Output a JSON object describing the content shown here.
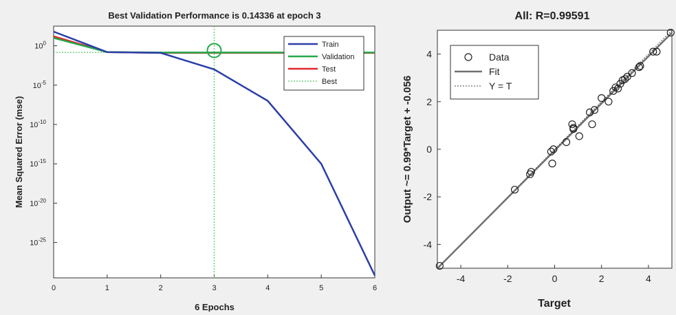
{
  "chart_data": [
    {
      "type": "line",
      "title": "Best Validation Performance is 0.14336 at epoch 3",
      "xlabel": "6 Epochs",
      "ylabel": "Mean Squared Error  (mse)",
      "yscale": "log",
      "xlim": [
        0,
        6
      ],
      "ylim_exponent": [
        -29.5,
        2.5
      ],
      "xticks": [
        0,
        1,
        2,
        3,
        4,
        5,
        6
      ],
      "yticks": [
        {
          "exp": 0,
          "label": "10",
          "sup": "0"
        },
        {
          "exp": -5,
          "label": "10",
          "sup": "-5"
        },
        {
          "exp": -10,
          "label": "10",
          "sup": "-10"
        },
        {
          "exp": -15,
          "label": "10",
          "sup": "-15"
        },
        {
          "exp": -20,
          "label": "10",
          "sup": "-20"
        },
        {
          "exp": -25,
          "label": "10",
          "sup": "-25"
        }
      ],
      "x": [
        0,
        1,
        2,
        3,
        4,
        5,
        6
      ],
      "series": [
        {
          "name": "Train",
          "color": "#2b3ea8",
          "log10_values": [
            1.8,
            -0.8,
            -0.9,
            -3.0,
            -7.0,
            -15.0,
            -29.2
          ]
        },
        {
          "name": "Validation",
          "color": "#23a84a",
          "log10_values": [
            1.0,
            -0.8,
            -0.85,
            -0.85,
            -0.85,
            -0.85,
            -0.85
          ]
        },
        {
          "name": "Test",
          "color": "#e0262a",
          "log10_values": [
            1.2,
            -0.8,
            -0.9,
            -0.9,
            -0.9,
            -0.9,
            -0.9
          ]
        }
      ],
      "best": {
        "name": "Best",
        "epoch": 3,
        "value": 0.14336,
        "color": "#6fcf7a"
      },
      "legend": "top-right",
      "grid": false
    },
    {
      "type": "scatter",
      "title": "All: R=0.99591",
      "xlabel": "Target",
      "ylabel": "Output ~= 0.99*Target + -0.056",
      "xlim": [
        -5,
        5
      ],
      "ylim": [
        -5,
        5
      ],
      "xticks": [
        -4,
        -2,
        0,
        2,
        4
      ],
      "yticks": [
        -4,
        -2,
        0,
        2,
        4
      ],
      "points": [
        [
          -4.9,
          -4.9
        ],
        [
          -1.7,
          -1.7
        ],
        [
          -1.05,
          -1.05
        ],
        [
          -1.0,
          -0.95
        ],
        [
          -0.15,
          -0.1
        ],
        [
          -0.05,
          0.0
        ],
        [
          -0.1,
          -0.6
        ],
        [
          0.5,
          0.3
        ],
        [
          0.75,
          1.05
        ],
        [
          0.8,
          0.85
        ],
        [
          0.8,
          0.9
        ],
        [
          1.05,
          0.55
        ],
        [
          1.5,
          1.55
        ],
        [
          1.7,
          1.65
        ],
        [
          1.6,
          1.05
        ],
        [
          2.0,
          2.15
        ],
        [
          2.3,
          2.0
        ],
        [
          2.5,
          2.45
        ],
        [
          2.6,
          2.6
        ],
        [
          2.7,
          2.55
        ],
        [
          2.8,
          2.75
        ],
        [
          2.9,
          2.9
        ],
        [
          3.0,
          2.95
        ],
        [
          3.1,
          3.05
        ],
        [
          3.3,
          3.2
        ],
        [
          3.6,
          3.45
        ],
        [
          3.65,
          3.5
        ],
        [
          4.2,
          4.1
        ],
        [
          4.35,
          4.1
        ],
        [
          4.95,
          4.9
        ]
      ],
      "fit": {
        "slope": 0.99,
        "intercept": -0.056,
        "color": "#707070"
      },
      "legend_entries": [
        {
          "name": "Data",
          "style": "marker"
        },
        {
          "name": "Fit",
          "style": "line"
        },
        {
          "name": "Y = T",
          "style": "dotted"
        }
      ],
      "legend": "top-left",
      "grid": false
    }
  ]
}
